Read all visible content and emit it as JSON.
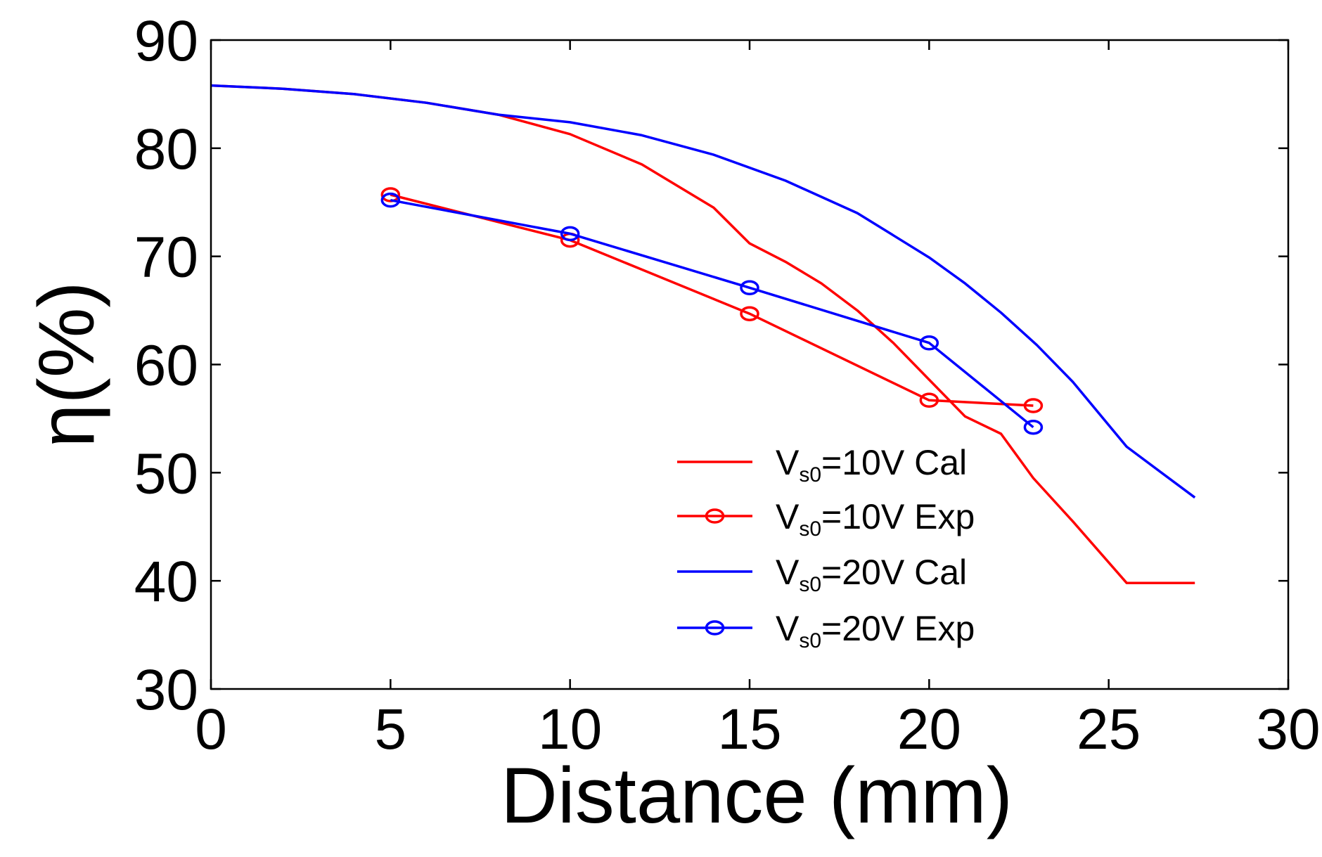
{
  "chart_data": {
    "type": "line",
    "title": "",
    "xlabel": "Distance (mm)",
    "ylabel": "η(%)",
    "xlim": [
      0,
      30
    ],
    "ylim": [
      30,
      90
    ],
    "xticks": [
      0,
      5,
      10,
      15,
      20,
      25,
      30
    ],
    "yticks": [
      30,
      40,
      50,
      60,
      70,
      80,
      90
    ],
    "grid": false,
    "legend_position": "bottom-right",
    "series": [
      {
        "name": "Vs0=10V Cal",
        "legend_main": "V",
        "legend_sub": "s0",
        "legend_rest": "=10V Cal",
        "color": "#ff0000",
        "marker": "none",
        "x": [
          0,
          2,
          4,
          6,
          8,
          10,
          12,
          14,
          15,
          16,
          17,
          18,
          19,
          20,
          21,
          22,
          22.9,
          24,
          25.5,
          27.4
        ],
        "y": [
          85.8,
          85.5,
          85.0,
          84.2,
          83.1,
          81.3,
          78.5,
          74.5,
          71.2,
          69.5,
          67.5,
          65.0,
          62.0,
          58.6,
          55.2,
          53.6,
          49.5,
          45.5,
          39.8,
          39.8
        ]
      },
      {
        "name": "Vs0=10V Exp",
        "legend_main": "V",
        "legend_sub": "s0",
        "legend_rest": "=10V Exp",
        "color": "#ff0000",
        "marker": "circle",
        "x": [
          5,
          10,
          15,
          20,
          22.9
        ],
        "y": [
          75.7,
          71.5,
          64.7,
          56.7,
          56.2
        ]
      },
      {
        "name": "Vs0=20V Cal",
        "legend_main": "V",
        "legend_sub": "s0",
        "legend_rest": "=20V Cal",
        "color": "#0000ff",
        "marker": "none",
        "x": [
          0,
          2,
          4,
          6,
          8,
          10,
          12,
          14,
          16,
          18,
          20,
          21,
          22,
          23,
          24,
          25.5,
          27.4
        ],
        "y": [
          85.8,
          85.5,
          85.0,
          84.2,
          83.1,
          82.4,
          81.2,
          79.4,
          77.0,
          74.0,
          69.9,
          67.5,
          64.8,
          61.8,
          58.4,
          52.4,
          47.7
        ]
      },
      {
        "name": "Vs0=20V Exp",
        "legend_main": "V",
        "legend_sub": "s0",
        "legend_rest": "=20V Exp",
        "color": "#0000ff",
        "marker": "circle",
        "x": [
          5,
          10,
          15,
          20,
          22.9
        ],
        "y": [
          75.2,
          72.1,
          67.1,
          62.0,
          54.2
        ]
      }
    ]
  }
}
